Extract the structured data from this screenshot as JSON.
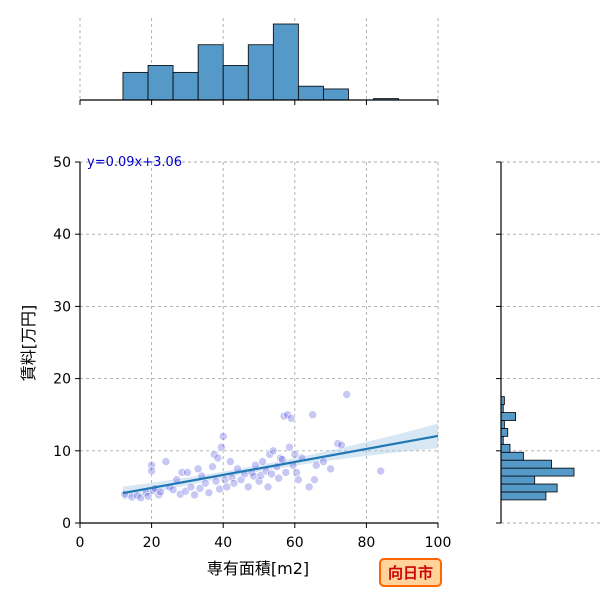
{
  "chart_data": {
    "type": "scatter",
    "xlabel": "専有面積[m2]",
    "ylabel": "賃料[万円]",
    "xlim": [
      0,
      100
    ],
    "ylim": [
      0,
      50
    ],
    "x_ticks": [
      0,
      20,
      40,
      60,
      80,
      100
    ],
    "y_ticks": [
      0,
      10,
      20,
      30,
      40,
      50
    ],
    "grid": true,
    "annotation": "y=0.09x+3.06",
    "badge": "向日市",
    "regression": {
      "slope": 0.09,
      "intercept": 3.06,
      "x_range": [
        12,
        100
      ]
    },
    "colors": {
      "points": "#3b3bd6",
      "line": "#1f77b4",
      "band": "#a9c9e6",
      "hist": "#5599c8",
      "badge_fill": "#ffd39b",
      "badge_border": "#ff6600",
      "badge_text": "#cc0000",
      "equation": "#0000cc"
    },
    "points": [
      [
        12.5,
        4.0
      ],
      [
        14.5,
        3.6
      ],
      [
        16,
        3.8
      ],
      [
        17,
        3.5
      ],
      [
        18.5,
        4.2
      ],
      [
        19,
        3.7
      ],
      [
        20,
        8.0
      ],
      [
        20,
        7.2
      ],
      [
        20.5,
        4.5
      ],
      [
        21,
        4.8
      ],
      [
        22,
        3.9
      ],
      [
        22.5,
        4.3
      ],
      [
        24,
        8.5
      ],
      [
        25,
        5.0
      ],
      [
        26,
        4.6
      ],
      [
        27,
        6.0
      ],
      [
        28,
        4.0
      ],
      [
        28.5,
        7.0
      ],
      [
        29.5,
        4.4
      ],
      [
        30,
        7.0
      ],
      [
        31,
        5.0
      ],
      [
        32,
        3.9
      ],
      [
        33,
        7.5
      ],
      [
        33.5,
        4.8
      ],
      [
        34,
        6.5
      ],
      [
        35,
        5.5
      ],
      [
        36,
        4.2
      ],
      [
        37,
        7.8
      ],
      [
        37.5,
        9.5
      ],
      [
        38,
        5.8
      ],
      [
        38.5,
        9.0
      ],
      [
        39,
        4.7
      ],
      [
        39.5,
        10.5
      ],
      [
        40,
        12.0
      ],
      [
        40.5,
        6.0
      ],
      [
        41,
        5.0
      ],
      [
        42,
        8.5
      ],
      [
        42.5,
        6.3
      ],
      [
        43,
        5.5
      ],
      [
        44,
        7.5
      ],
      [
        45,
        6.0
      ],
      [
        46,
        6.8
      ],
      [
        47,
        5.0
      ],
      [
        48,
        7.0
      ],
      [
        48.5,
        6.5
      ],
      [
        49,
        8.0
      ],
      [
        50,
        5.8
      ],
      [
        50.5,
        6.6
      ],
      [
        51,
        8.5
      ],
      [
        52,
        7.2
      ],
      [
        52.5,
        5.0
      ],
      [
        53,
        9.5
      ],
      [
        53.5,
        6.8
      ],
      [
        54,
        10.0
      ],
      [
        55,
        7.8
      ],
      [
        55.5,
        6.2
      ],
      [
        56,
        9.0
      ],
      [
        56.5,
        8.8
      ],
      [
        57,
        14.8
      ],
      [
        57.5,
        7.0
      ],
      [
        58,
        15.0
      ],
      [
        58.5,
        10.5
      ],
      [
        59,
        14.5
      ],
      [
        59.5,
        8.0
      ],
      [
        60,
        9.5
      ],
      [
        60.5,
        7.0
      ],
      [
        61,
        6.0
      ],
      [
        62,
        9.0
      ],
      [
        64,
        5.0
      ],
      [
        65,
        15.0
      ],
      [
        65.5,
        6.0
      ],
      [
        66,
        8.0
      ],
      [
        68,
        8.5
      ],
      [
        70,
        7.5
      ],
      [
        72,
        11.0
      ],
      [
        73,
        10.8
      ],
      [
        74.5,
        17.8
      ],
      [
        84,
        7.2
      ]
    ],
    "top_histogram": {
      "bin_edges": [
        5,
        12,
        19,
        26,
        33,
        40,
        47,
        54,
        61,
        68,
        75,
        82,
        89,
        96
      ],
      "counts": [
        0,
        4,
        5,
        4,
        8,
        5,
        8,
        11,
        2,
        1.6,
        0,
        0.2,
        0
      ]
    },
    "right_histogram": {
      "bin_edges": [
        3.2,
        4.3,
        5.4,
        6.5,
        7.6,
        8.7,
        9.8,
        10.9,
        12.0,
        13.1,
        14.2,
        15.3,
        16.4,
        17.5
      ],
      "counts": [
        8,
        10,
        6,
        13,
        9,
        4,
        1.6,
        0.4,
        1.2,
        0.6,
        2.6,
        0.4,
        0.6
      ]
    }
  }
}
